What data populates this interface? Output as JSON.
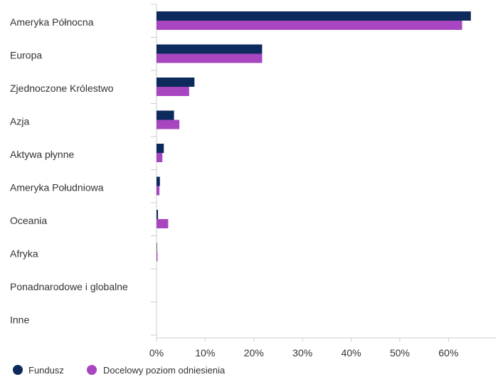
{
  "chart_data": {
    "type": "bar",
    "orientation": "horizontal",
    "categories": [
      "Ameryka Północna",
      "Europa",
      "Zjednoczone Królestwo",
      "Azja",
      "Aktywa płynne",
      "Ameryka Południowa",
      "Oceania",
      "Afryka",
      "Ponadnarodowe i globalne",
      "Inne"
    ],
    "series": [
      {
        "name": "Fundusz",
        "color": "#0d2a5c",
        "values": [
          64.6,
          21.7,
          7.8,
          3.6,
          1.5,
          0.7,
          0.3,
          0.1,
          0.0,
          0.0
        ]
      },
      {
        "name": "Docelowy poziom odniesienia",
        "color": "#a845c0",
        "values": [
          62.8,
          21.7,
          6.7,
          4.7,
          1.2,
          0.6,
          2.4,
          0.2,
          0.0,
          0.0
        ]
      }
    ],
    "xlim": [
      0,
      70
    ],
    "xticks": [
      "0%",
      "10%",
      "20%",
      "30%",
      "40%",
      "50%",
      "60%"
    ],
    "xtick_values": [
      0,
      10,
      20,
      30,
      40,
      50,
      60
    ],
    "title": "",
    "xlabel": "",
    "ylabel": "",
    "grid": false,
    "legend_position": "bottom-left"
  }
}
